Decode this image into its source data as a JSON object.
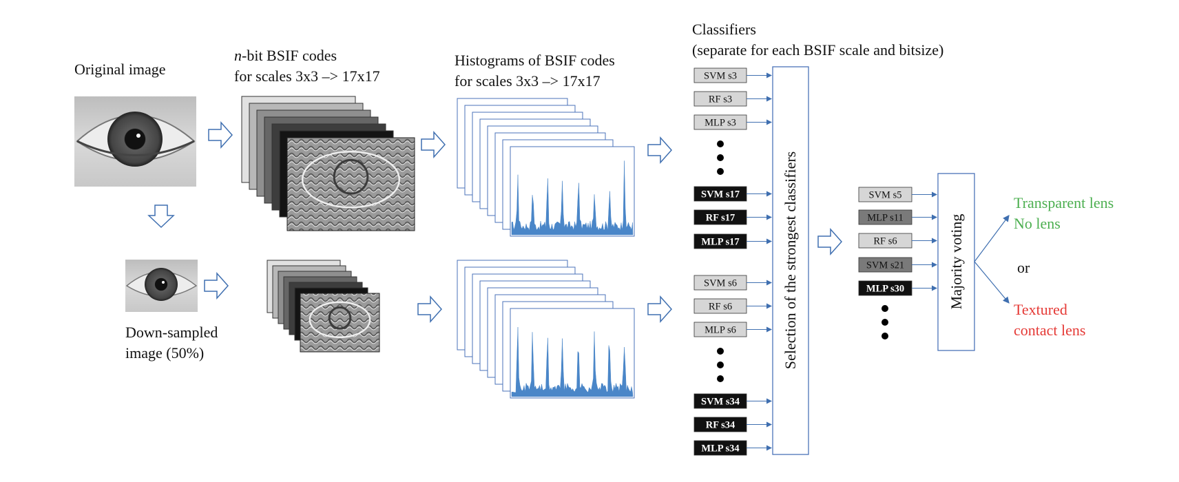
{
  "labels": {
    "original": "Original image",
    "downsampled_line1": "Down-sampled",
    "downsampled_line2": "image (50%)",
    "bsif_line1_italic": "n",
    "bsif_line1_rest": "-bit BSIF codes",
    "bsif_line2": "for scales 3x3 –> 17x17",
    "hist_line1": "Histograms of BSIF codes",
    "hist_line2": "for scales 3x3 –> 17x17",
    "classifiers_line1": "Classifiers",
    "classifiers_line2": "(separate for each BSIF scale and bitsize)",
    "selection": "Selection of the strongest classifiers",
    "voting": "Majority voting",
    "or": "or"
  },
  "outputs": {
    "transparent": "Transparent lens",
    "nolens": "No lens",
    "textured1": "Textured",
    "textured2": "contact lens"
  },
  "colors": {
    "arrow": "#3f6fb0",
    "outline": "#4a72b8",
    "green": "#4caf50",
    "red": "#e53935",
    "histogram": "#4a86c8",
    "light_box": "#d6d6d6",
    "mid_box": "#7a7a7a",
    "dark_box": "#111111"
  },
  "classifier_groups": [
    {
      "items": [
        {
          "label": "SVM s3",
          "tone": "light"
        },
        {
          "label": "RF s3",
          "tone": "light"
        },
        {
          "label": "MLP s3",
          "tone": "light"
        },
        {
          "label": "SVM s17",
          "tone": "dark"
        },
        {
          "label": "RF s17",
          "tone": "dark"
        },
        {
          "label": "MLP s17",
          "tone": "dark"
        }
      ]
    },
    {
      "items": [
        {
          "label": "SVM s6",
          "tone": "light"
        },
        {
          "label": "RF s6",
          "tone": "light"
        },
        {
          "label": "MLP s6",
          "tone": "light"
        },
        {
          "label": "SVM s34",
          "tone": "dark"
        },
        {
          "label": "RF s34",
          "tone": "dark"
        },
        {
          "label": "MLP s34",
          "tone": "dark"
        }
      ]
    }
  ],
  "selected_classifiers": [
    {
      "label": "SVM s5",
      "tone": "light"
    },
    {
      "label": "MLP s11",
      "tone": "mid"
    },
    {
      "label": "RF s6",
      "tone": "light"
    },
    {
      "label": "SVM s21",
      "tone": "mid"
    },
    {
      "label": "MLP s30",
      "tone": "dark"
    }
  ]
}
